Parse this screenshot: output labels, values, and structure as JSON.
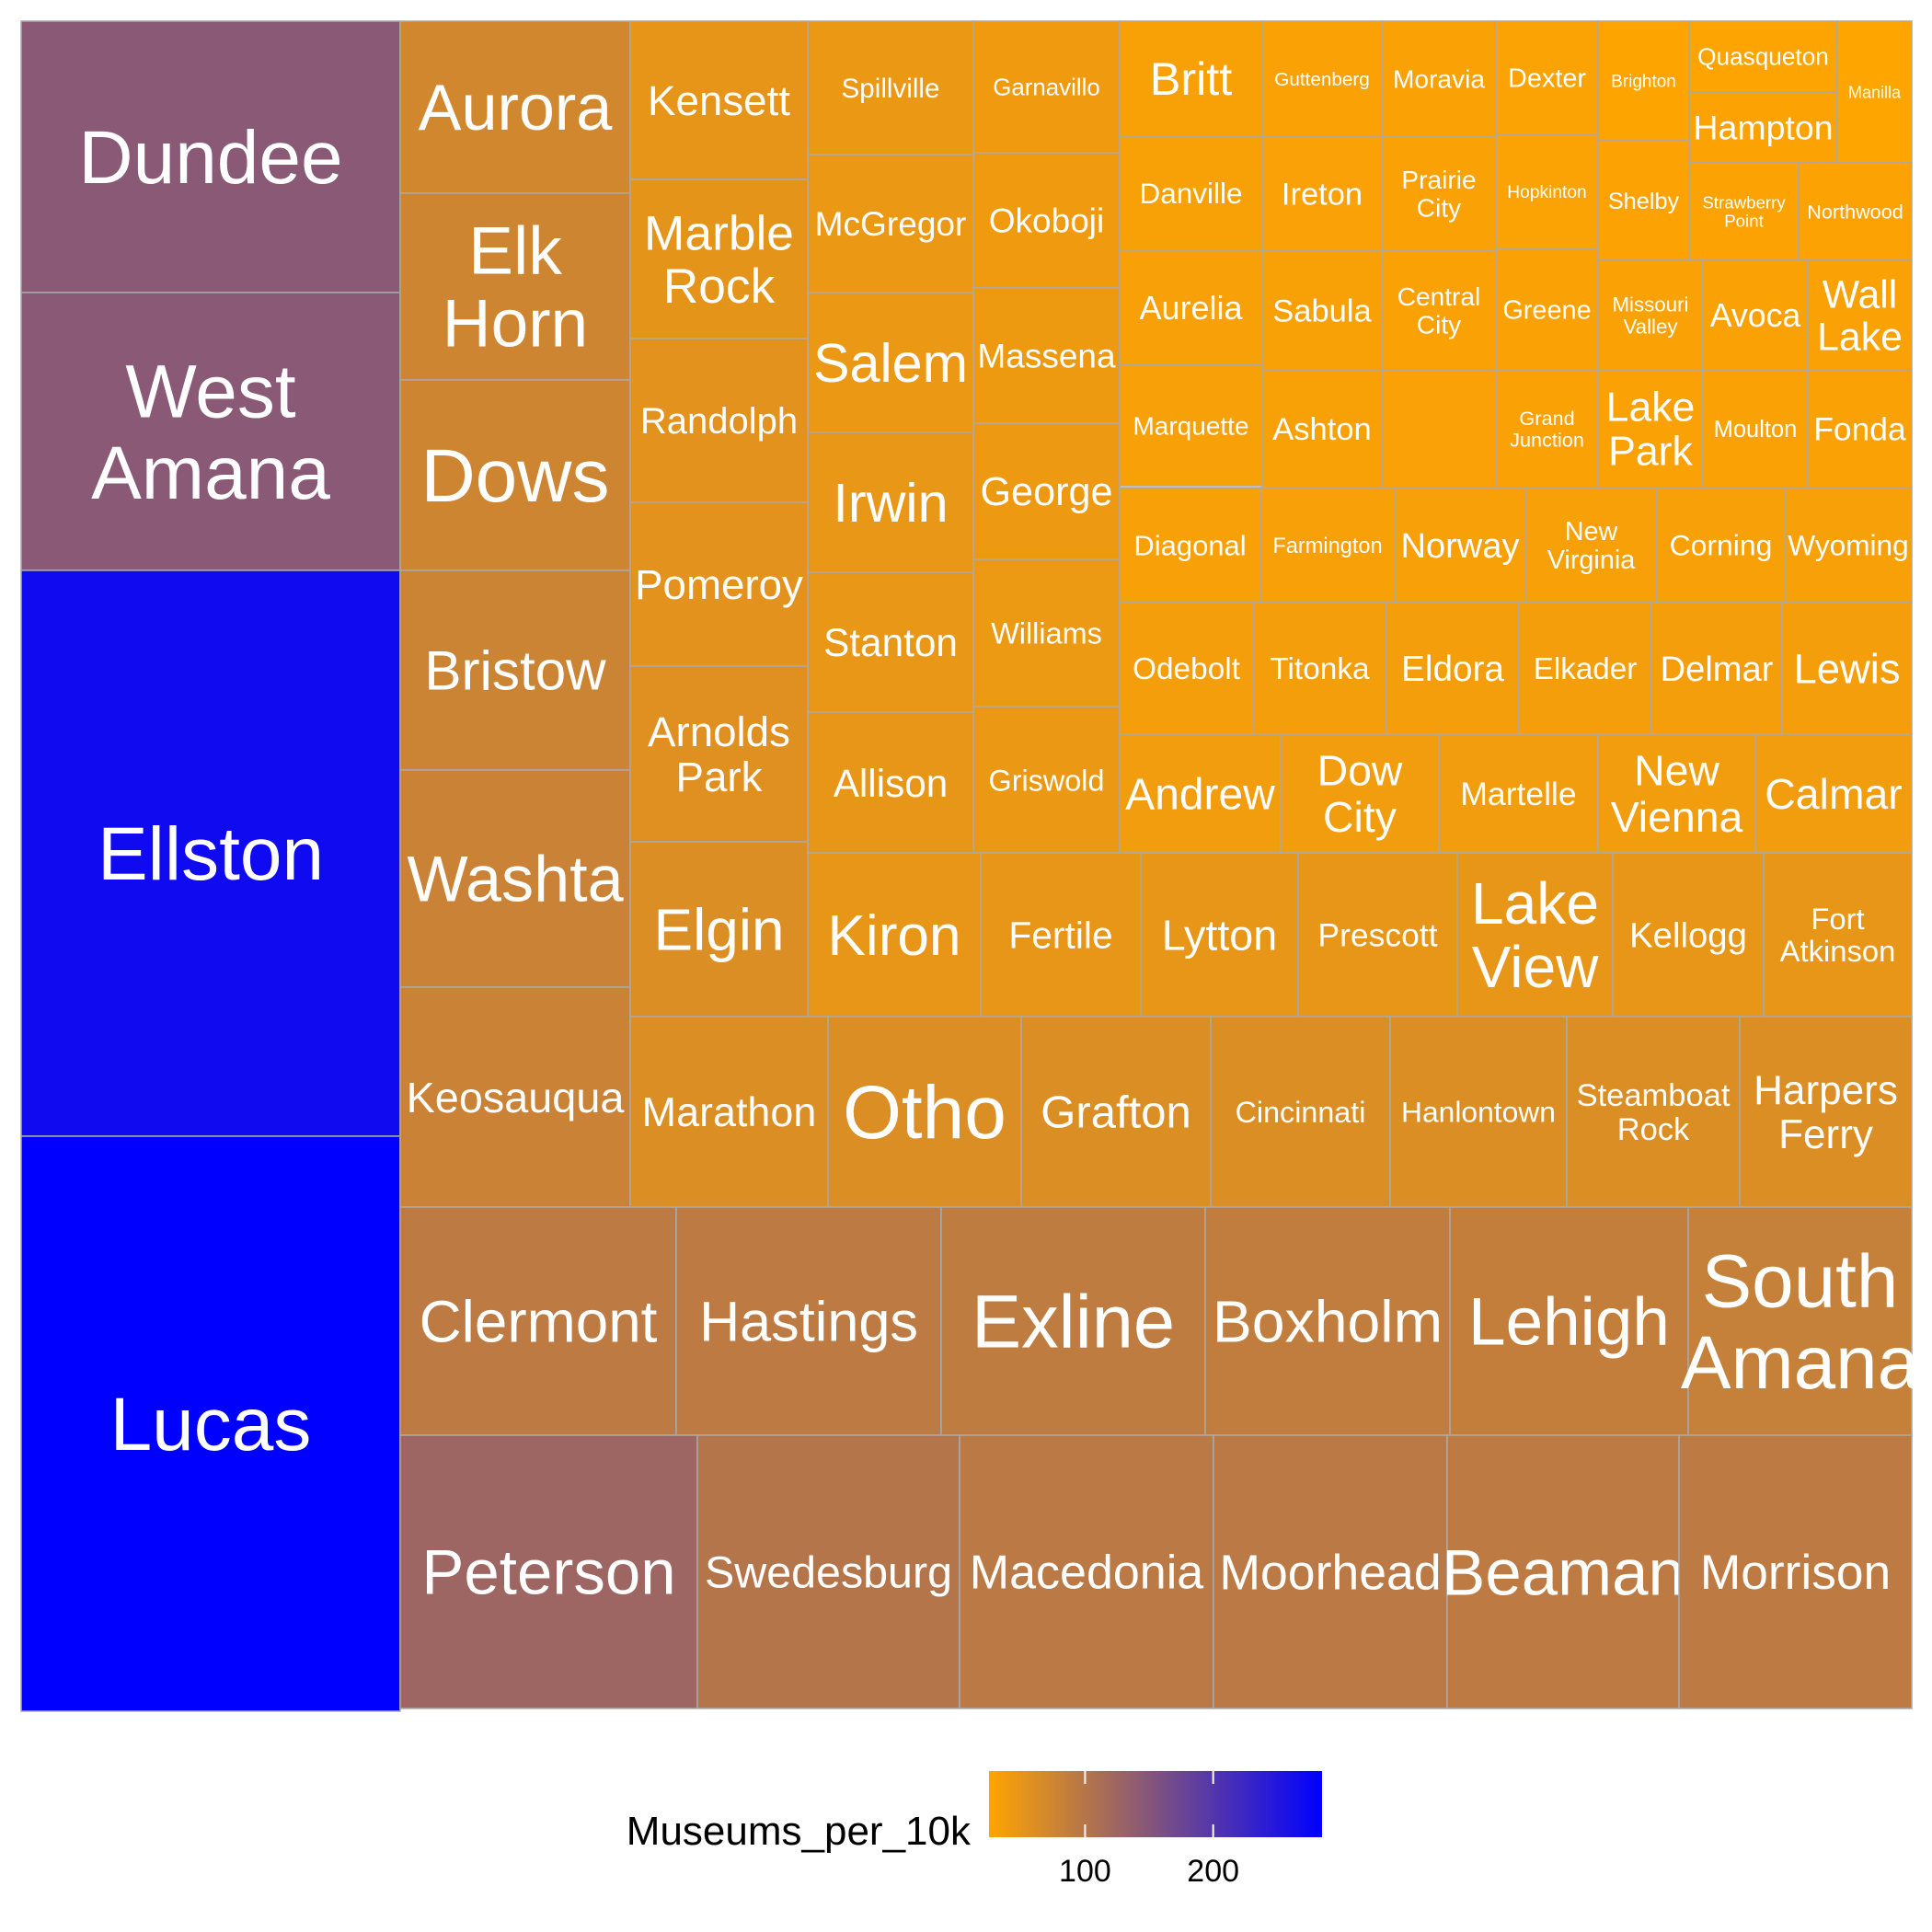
{
  "chart_data": {
    "type": "treemap",
    "title": "",
    "value_field": "",
    "color_field": "Museums_per_10k",
    "color_scale": {
      "low": "#FFA500",
      "high": "#0000FF",
      "domain": [
        25,
        285
      ]
    },
    "legend": {
      "title": "Museums_per_10k",
      "ticks": [
        100,
        200
      ],
      "position": "bottom"
    },
    "tiles": [
      {
        "name": "Dundee",
        "size": 74.0,
        "color_value": 145
      },
      {
        "name": "West Amana",
        "size": 75.0,
        "color_value": 145
      },
      {
        "name": "Ellston",
        "size": 154.0,
        "color_value": 270
      },
      {
        "name": "Lucas",
        "size": 156.0,
        "color_value": 285
      },
      {
        "name": "Aurora",
        "size": 27.0,
        "color_value": 72
      },
      {
        "name": "Elk Horn",
        "size": 29.5,
        "color_value": 75
      },
      {
        "name": "Dows",
        "size": 30.0,
        "color_value": 75
      },
      {
        "name": "Bristow",
        "size": 31.5,
        "color_value": 78
      },
      {
        "name": "Washta",
        "size": 34.5,
        "color_value": 80
      },
      {
        "name": "Keosauqua",
        "size": 35.0,
        "color_value": 80
      },
      {
        "name": "Kensett",
        "size": 18.0,
        "color_value": 50
      },
      {
        "name": "Marble Rock",
        "size": 18.0,
        "color_value": 52
      },
      {
        "name": "Randolph",
        "size": 18.5,
        "color_value": 55
      },
      {
        "name": "Pomeroy",
        "size": 18.5,
        "color_value": 55
      },
      {
        "name": "Arnolds Park",
        "size": 19.8,
        "color_value": 58
      },
      {
        "name": "Elgin",
        "size": 19.8,
        "color_value": 62
      },
      {
        "name": "Spillville",
        "size": 13.0,
        "color_value": 45
      },
      {
        "name": "McGregor",
        "size": 14.0,
        "color_value": 45
      },
      {
        "name": "Salem",
        "size": 14.5,
        "color_value": 45
      },
      {
        "name": "Irwin",
        "size": 14.8,
        "color_value": 47
      },
      {
        "name": "Stanton",
        "size": 14.8,
        "color_value": 47
      },
      {
        "name": "Allison",
        "size": 15.0,
        "color_value": 48
      },
      {
        "name": "Garnavillo",
        "size": 12.0,
        "color_value": 40
      },
      {
        "name": "Okoboji",
        "size": 12.2,
        "color_value": 40
      },
      {
        "name": "Massena",
        "size": 12.3,
        "color_value": 42
      },
      {
        "name": "George",
        "size": 12.5,
        "color_value": 43
      },
      {
        "name": "Williams",
        "size": 13.4,
        "color_value": 44
      },
      {
        "name": "Griswold",
        "size": 13.6,
        "color_value": 45
      },
      {
        "name": "Britt",
        "size": 8.0,
        "color_value": 32
      },
      {
        "name": "Danville",
        "size": 8.2,
        "color_value": 32
      },
      {
        "name": "Aurelia",
        "size": 8.2,
        "color_value": 33
      },
      {
        "name": "Marquette",
        "size": 8.2,
        "color_value": 33
      },
      {
        "name": "Guttenberg",
        "size": 8.0,
        "color_value": 30
      },
      {
        "name": "Ireton",
        "size": 8.0,
        "color_value": 31
      },
      {
        "name": "Sabula",
        "size": 8.2,
        "color_value": 32
      },
      {
        "name": "Ashton",
        "size": 8.2,
        "color_value": 32
      },
      {
        "name": "Moravia",
        "size": 7.4,
        "color_value": 30
      },
      {
        "name": "Prairie City",
        "size": 7.6,
        "color_value": 30
      },
      {
        "name": "Central City",
        "size": 7.6,
        "color_value": 30
      },
      {
        "name": "",
        "size": 7.8,
        "color_value": 31
      },
      {
        "name": "Dexter",
        "size": 6.9,
        "color_value": 29
      },
      {
        "name": "Hopkinton",
        "size": 7.0,
        "color_value": 29
      },
      {
        "name": "Greene",
        "size": 7.0,
        "color_value": 30
      },
      {
        "name": "Grand Junction",
        "size": 7.1,
        "color_value": 30
      },
      {
        "name": "Brighton",
        "size": 7.0,
        "color_value": 26
      },
      {
        "name": "Quasqueton",
        "size": 4.8,
        "color_value": 27
      },
      {
        "name": "Hampton",
        "size": 5.6,
        "color_value": 28
      },
      {
        "name": "Manilla",
        "size": 5.1,
        "color_value": 25
      },
      {
        "name": "Shelby",
        "size": 5.3,
        "color_value": 28
      },
      {
        "name": "Strawberry Point",
        "size": 4.9,
        "color_value": 28
      },
      {
        "name": "Northwood",
        "size": 5.4,
        "color_value": 28
      },
      {
        "name": "Missouri Valley",
        "size": 5.4,
        "color_value": 30
      },
      {
        "name": "Avoca",
        "size": 5.4,
        "color_value": 30
      },
      {
        "name": "Wall Lake",
        "size": 5.4,
        "color_value": 30
      },
      {
        "name": "Lake Park",
        "size": 5.6,
        "color_value": 30
      },
      {
        "name": "Moulton",
        "size": 5.6,
        "color_value": 30
      },
      {
        "name": "Fonda",
        "size": 5.6,
        "color_value": 30
      },
      {
        "name": "Diagonal",
        "size": 8.3,
        "color_value": 33
      },
      {
        "name": "Farmington",
        "size": 8.4,
        "color_value": 33
      },
      {
        "name": "Norway",
        "size": 8.4,
        "color_value": 33
      },
      {
        "name": "New Virginia",
        "size": 8.4,
        "color_value": 33
      },
      {
        "name": "Corning",
        "size": 8.4,
        "color_value": 33
      },
      {
        "name": "Wyoming",
        "size": 8.4,
        "color_value": 33
      },
      {
        "name": "Odebolt",
        "size": 9.0,
        "color_value": 36
      },
      {
        "name": "Titonka",
        "size": 9.2,
        "color_value": 36
      },
      {
        "name": "Eldora",
        "size": 9.2,
        "color_value": 36
      },
      {
        "name": "Elkader",
        "size": 9.2,
        "color_value": 36
      },
      {
        "name": "Delmar",
        "size": 9.2,
        "color_value": 36
      },
      {
        "name": "Lewis",
        "size": 9.2,
        "color_value": 36
      },
      {
        "name": "Andrew",
        "size": 9.8,
        "color_value": 38
      },
      {
        "name": "Dow City",
        "size": 10.2,
        "color_value": 38
      },
      {
        "name": "Martelle",
        "size": 10.3,
        "color_value": 38
      },
      {
        "name": "New Vienna",
        "size": 10.3,
        "color_value": 38
      },
      {
        "name": "Calmar",
        "size": 10.3,
        "color_value": 38
      },
      {
        "name": "Kiron",
        "size": 14.5,
        "color_value": 48
      },
      {
        "name": "Fertile",
        "size": 14.6,
        "color_value": 48
      },
      {
        "name": "Lytton",
        "size": 14.6,
        "color_value": 48
      },
      {
        "name": "Prescott",
        "size": 14.6,
        "color_value": 48
      },
      {
        "name": "Lake View",
        "size": 14.6,
        "color_value": 48
      },
      {
        "name": "Kellogg",
        "size": 14.6,
        "color_value": 48
      },
      {
        "name": "Fort Atkinson",
        "size": 14.8,
        "color_value": 48
      },
      {
        "name": "Marathon",
        "size": 19.0,
        "color_value": 62
      },
      {
        "name": "Otho",
        "size": 19.0,
        "color_value": 62
      },
      {
        "name": "Grafton",
        "size": 19.0,
        "color_value": 62
      },
      {
        "name": "Cincinnati",
        "size": 19.0,
        "color_value": 62
      },
      {
        "name": "Hanlontown",
        "size": 19.0,
        "color_value": 62
      },
      {
        "name": "Steamboat Rock",
        "size": 19.0,
        "color_value": 62
      },
      {
        "name": "Harpers Ferry",
        "size": 19.0,
        "color_value": 62
      },
      {
        "name": "Clermont",
        "size": 32.0,
        "color_value": 92
      },
      {
        "name": "Hastings",
        "size": 32.0,
        "color_value": 92
      },
      {
        "name": "Exline",
        "size": 32.0,
        "color_value": 90
      },
      {
        "name": "Boxholm",
        "size": 32.0,
        "color_value": 88
      },
      {
        "name": "Lehigh",
        "size": 32.0,
        "color_value": 86
      },
      {
        "name": "South Amana",
        "size": 32.0,
        "color_value": 84
      },
      {
        "name": "Peterson",
        "size": 42.0,
        "color_value": 125
      },
      {
        "name": "Swedesburg",
        "size": 42.0,
        "color_value": 100
      },
      {
        "name": "Macedonia",
        "size": 42.0,
        "color_value": 95
      },
      {
        "name": "Moorhead",
        "size": 42.0,
        "color_value": 95
      },
      {
        "name": "Beaman",
        "size": 42.0,
        "color_value": 92
      },
      {
        "name": "Morrison",
        "size": 42.0,
        "color_value": 92
      }
    ]
  }
}
